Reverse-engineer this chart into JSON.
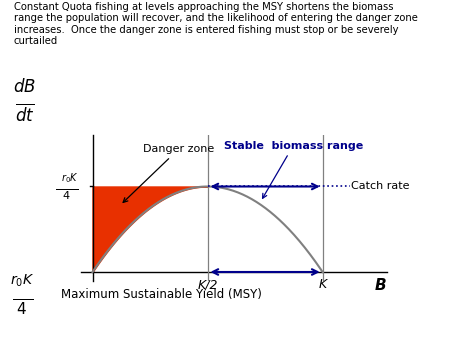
{
  "title_text": "Constant Quota fishing at levels approaching the MSY shortens the biomass\nrange the population will recover, and the likelihood of entering the danger zone\nincreases.  Once the danger zone is entered fishing must stop or be severely\ncurtailed",
  "xlabel_K2": "K/2",
  "xlabel_K": "K",
  "xlabel_B": "B",
  "catch_rate_label": "Catch rate",
  "danger_zone_label": "Danger zone",
  "stable_label": "Stable  biomass range",
  "msy_bottom_label": "Maximum Sustainable Yield (MSY)",
  "curve_color": "#808080",
  "danger_fill_color": "#e83000",
  "arrow_color": "#00008B",
  "stable_label_color": "#00008B",
  "catch_line_color": "#00008B",
  "bg_color": "#ffffff",
  "K": 1.0,
  "K2": 0.5,
  "msy_value": 0.25
}
